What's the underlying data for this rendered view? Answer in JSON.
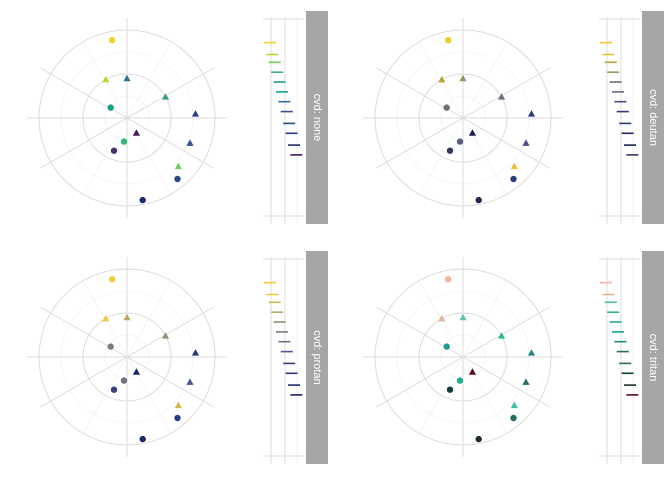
{
  "chart_data": {
    "type": "scatter",
    "coordinate_system": "polar",
    "title": "",
    "xlabel": "",
    "ylabel": "",
    "legend": "none",
    "shapes": {
      "0": "circle",
      "1": "triangle"
    },
    "points_theta": [
      0.47,
      0.97,
      0.39,
      0.92,
      0.17,
      1.0,
      0.84,
      0.37,
      0.24,
      0.31,
      0.56,
      0.52,
      0.41
    ],
    "points_r": [
      0.95,
      0.9,
      0.9,
      0.5,
      0.5,
      0.45,
      0.22,
      0.8,
      0.78,
      0.77,
      0.4,
      0.27,
      0.2
    ],
    "points_shape": [
      0,
      0,
      0,
      1,
      1,
      1,
      0,
      1,
      1,
      1,
      0,
      0,
      1
    ],
    "panels": [
      {
        "strip": "cvd: none",
        "colors": [
          "#1f2b68",
          "#f1d32a",
          "#2a4885",
          "#b3d930",
          "#3a9b82",
          "#2c6e93",
          "#1a9f84",
          "#6ad258",
          "#29398d",
          "#3a4f91",
          "#4b2f66",
          "#35b779",
          "#461a5a"
        ],
        "bar_colors": [
          "#f1d32a",
          "#b3d930",
          "#6ad258",
          "#35b779",
          "#1a9f84",
          "#1a9f84",
          "#2c6e93",
          "#3a4f91",
          "#2a4885",
          "#29398d",
          "#1f2b68",
          "#461a5a"
        ]
      },
      {
        "strip": "cvd: deutan",
        "colors": [
          "#20295a",
          "#f3c92a",
          "#2b3d78",
          "#b8a23a",
          "#6a6d7e",
          "#9c9760",
          "#6e7074",
          "#e6c233",
          "#2e3b7a",
          "#4a4e88",
          "#343a5e",
          "#5a5e84",
          "#1a2054"
        ],
        "bar_colors": [
          "#f3c92a",
          "#e6c233",
          "#b8a23a",
          "#9c9760",
          "#6e7074",
          "#6a6d7e",
          "#4a4e88",
          "#2e3b7a",
          "#2b3d78",
          "#20295a",
          "#1a2054",
          "#343a5e"
        ]
      },
      {
        "strip": "cvd: protan",
        "colors": [
          "#1d2a6a",
          "#f4cc35",
          "#263f86",
          "#ebc845",
          "#8b9470",
          "#b7a86a",
          "#7d7e78",
          "#d3b746",
          "#283686",
          "#4e5790",
          "#383f78",
          "#6e7284",
          "#1b2068"
        ],
        "bar_colors": [
          "#f4cc35",
          "#ebc845",
          "#d3b746",
          "#b7a86a",
          "#8b9470",
          "#7d7e78",
          "#6e7284",
          "#4e5790",
          "#383f78",
          "#283686",
          "#1d2a6a",
          "#1b2068"
        ]
      },
      {
        "strip": "cvd: tritan",
        "colors": [
          "#1c2f2c",
          "#f4b2a0",
          "#2b6d63",
          "#e2b3a3",
          "#2fb590",
          "#5bc4b0",
          "#1a9e8e",
          "#3cbfa2",
          "#1f8877",
          "#2a6e66",
          "#0f3f3e",
          "#23a892",
          "#5a0d1c"
        ],
        "bar_colors": [
          "#f4b2a0",
          "#e2b3a3",
          "#3cbfa2",
          "#2fb590",
          "#23a892",
          "#1a9e8e",
          "#1f8877",
          "#2a6e66",
          "#2b6d63",
          "#0f3f3e",
          "#1c2f2c",
          "#5a0d1c"
        ]
      }
    ],
    "side_bars": [
      0.12,
      0.18,
      0.22,
      0.27,
      0.32,
      0.37,
      0.42,
      0.47,
      0.53,
      0.58,
      0.64,
      0.69
    ]
  }
}
